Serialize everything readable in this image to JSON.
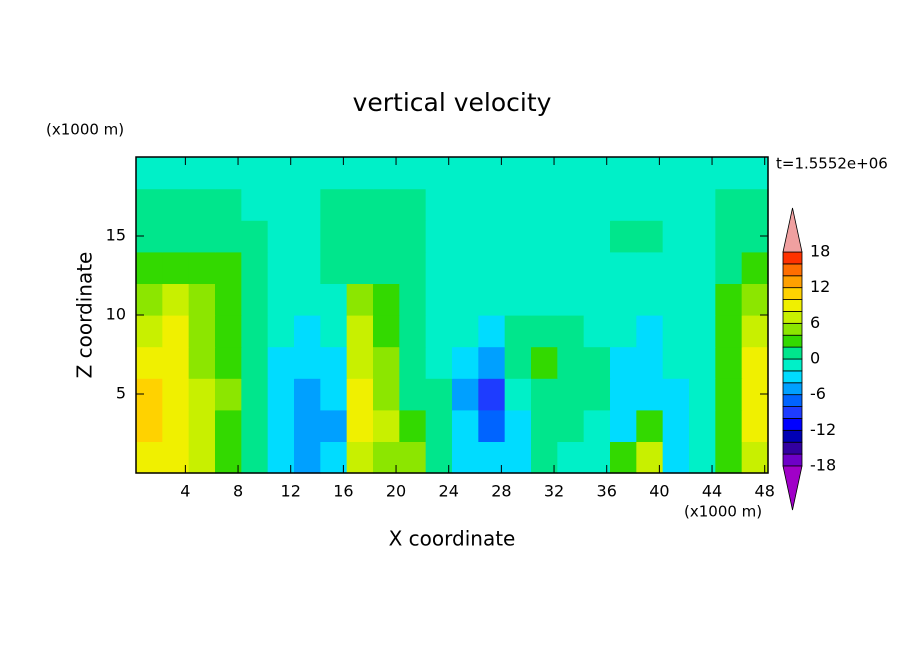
{
  "chart_data": {
    "type": "contour",
    "title": "vertical velocity",
    "time_label": "t=1.5552e+06",
    "x_label": "X coordinate",
    "y_label": "Z coordinate",
    "x_unit": "(x1000 m)",
    "y_unit": "(x1000 m)",
    "xlim": [
      0.25,
      48.25
    ],
    "ylim": [
      0,
      20
    ],
    "xticks": [
      4,
      8,
      12,
      16,
      20,
      24,
      28,
      32,
      36,
      40,
      44,
      48
    ],
    "yticks": [
      5,
      10,
      15
    ],
    "x": [
      1.25,
      3.25,
      5.25,
      7.25,
      9.25,
      11.25,
      13.25,
      15.25,
      17.25,
      19.25,
      21.25,
      23.25,
      25.25,
      27.25,
      29.25,
      31.25,
      33.25,
      35.25,
      37.25,
      39.25,
      41.25,
      43.25,
      45.25,
      47.25
    ],
    "y": [
      1,
      3,
      5,
      7,
      9,
      11,
      13,
      15,
      17,
      19
    ],
    "z": [
      [
        8,
        8,
        6,
        2,
        0,
        -3,
        -5,
        -4,
        6,
        4,
        4,
        0,
        -3,
        -4,
        -3,
        0,
        -1,
        -1,
        2,
        6,
        -3,
        -2,
        2,
        6
      ],
      [
        10,
        8,
        6,
        2,
        0,
        -3,
        -5,
        -5,
        8,
        6,
        2,
        0,
        -4,
        -8,
        -3,
        1,
        1,
        -1,
        -3,
        2,
        -3,
        -2,
        2,
        8
      ],
      [
        10,
        8,
        6,
        4,
        0,
        -3,
        -5,
        -4,
        8,
        4,
        0,
        0,
        -5,
        -10,
        -2,
        1,
        1,
        0,
        -3,
        -4,
        -3,
        -2,
        2,
        8
      ],
      [
        8,
        8,
        4,
        2,
        0,
        -3,
        -4,
        -3,
        6,
        4,
        0,
        -1,
        -4,
        -5,
        0,
        2,
        1,
        0,
        -3,
        -3,
        -2,
        -2,
        2,
        8
      ],
      [
        6,
        8,
        4,
        2,
        0,
        -2,
        -3,
        -2,
        6,
        2,
        0,
        -1,
        -2,
        -3,
        0,
        1,
        0,
        -1,
        -2,
        -3,
        -2,
        -1,
        2,
        6
      ],
      [
        4,
        6,
        4,
        2,
        0,
        -1,
        -1,
        -1,
        4,
        2,
        0,
        -1,
        -1,
        -1,
        -1,
        -1,
        -1,
        -1,
        -2,
        -2,
        -2,
        -1,
        2,
        4
      ],
      [
        2,
        2,
        2,
        2,
        1,
        -1,
        -1,
        0,
        1,
        1,
        0,
        -1,
        -1,
        -1,
        -1,
        -1,
        -1,
        -1,
        -1,
        -1,
        -1,
        -1,
        1,
        2
      ],
      [
        1,
        1,
        1,
        1,
        0,
        -1,
        -1,
        1,
        1,
        1,
        0,
        -1,
        -1,
        -1,
        -1,
        -1,
        -1,
        -1,
        1,
        1,
        -1,
        -1,
        1,
        1
      ],
      [
        1,
        1,
        1,
        0,
        -1,
        -1,
        -1,
        1,
        1,
        1,
        0,
        -1,
        -1,
        -1,
        -1,
        -1,
        -1,
        -1,
        -1,
        -1,
        -1,
        -1,
        0,
        1
      ],
      [
        -1,
        -1,
        -1,
        -1,
        -1,
        -1,
        -1,
        -1,
        -1,
        -1,
        -1,
        -1,
        -1,
        -1,
        -1,
        -1,
        -1,
        -1,
        -1,
        -1,
        -1,
        -1,
        -1,
        -1
      ]
    ],
    "levels": [
      -18,
      -16,
      -14,
      -12,
      -10,
      -8,
      -6,
      -4,
      -2,
      0,
      2,
      4,
      6,
      8,
      10,
      12,
      14,
      16,
      18
    ],
    "colors": [
      "#a000c8",
      "#6e00c8",
      "#3200a0",
      "#0000b4",
      "#0000ff",
      "#1e3cff",
      "#0064ff",
      "#00a0ff",
      "#00dcff",
      "#00f0c8",
      "#00e68c",
      "#33d900",
      "#8ce600",
      "#c8f000",
      "#f0f000",
      "#ffd200",
      "#ffa000",
      "#ff6e00",
      "#ff3200",
      "#f0a0a0"
    ],
    "colorbar_ticks": [
      18,
      12,
      6,
      0,
      -6,
      -12,
      -18
    ]
  }
}
